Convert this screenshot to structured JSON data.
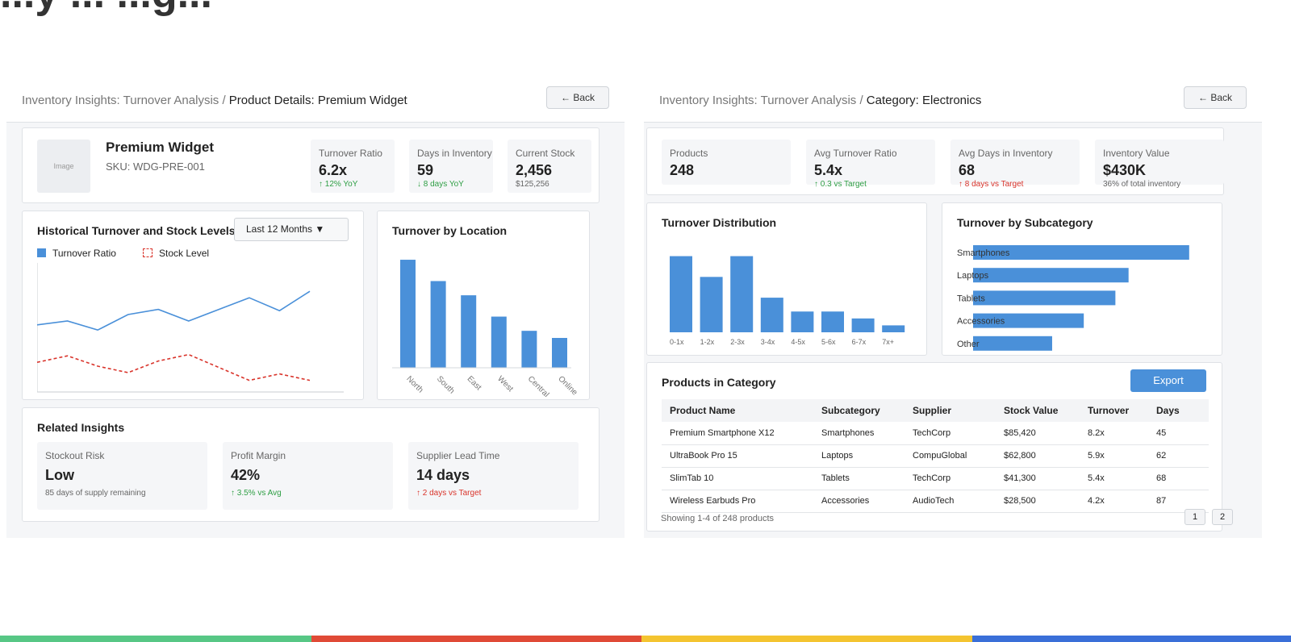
{
  "slide": {
    "title_fragment": "...y ... ...g..."
  },
  "left": {
    "breadcrumb_path": "Inventory Insights: Turnover Analysis / ",
    "breadcrumb_current": "Product Details: Premium Widget",
    "back_label": "← Back",
    "product": {
      "image_label": "Image",
      "name": "Premium Widget",
      "sku": "SKU: WDG-PRE-001"
    },
    "stats": [
      {
        "label": "Turnover Ratio",
        "value": "6.2x",
        "sub": "↑ 12% YoY",
        "tone": "up"
      },
      {
        "label": "Days in Inventory",
        "value": "59",
        "sub": "↓ 8 days YoY",
        "tone": "up"
      },
      {
        "label": "Current Stock",
        "value": "2,456",
        "sub": "$125,256",
        "tone": "grey"
      }
    ],
    "history": {
      "title": "Historical Turnover and Stock Levels",
      "period": "Last 12 Months ▼",
      "legend": [
        "Turnover Ratio",
        "Stock Level"
      ]
    },
    "location": {
      "title": "Turnover by Location"
    },
    "insights": {
      "title": "Related Insights",
      "items": [
        {
          "label": "Stockout Risk",
          "value": "Low",
          "sub": "85 days of supply remaining",
          "tone": "grey"
        },
        {
          "label": "Profit Margin",
          "value": "42%",
          "sub": "↑ 3.5% vs Avg",
          "tone": "up"
        },
        {
          "label": "Supplier Lead Time",
          "value": "14 days",
          "sub": "↑ 2 days vs Target",
          "tone": "bad"
        }
      ]
    }
  },
  "right": {
    "breadcrumb_path": "Inventory Insights: Turnover Analysis / ",
    "breadcrumb_current": "Category: Electronics",
    "back_label": "← Back",
    "stats": [
      {
        "label": "Products",
        "value": "248",
        "sub": "",
        "tone": "grey"
      },
      {
        "label": "Avg Turnover Ratio",
        "value": "5.4x",
        "sub": "↑ 0.3 vs Target",
        "tone": "up"
      },
      {
        "label": "Avg Days in Inventory",
        "value": "68",
        "sub": "↑ 8 days vs Target",
        "tone": "bad"
      },
      {
        "label": "Inventory Value",
        "value": "$430K",
        "sub": "36% of total inventory",
        "tone": "grey"
      }
    ],
    "distribution": {
      "title": "Turnover Distribution"
    },
    "subcategory": {
      "title": "Turnover by Subcategory"
    },
    "products": {
      "title": "Products in Category",
      "export_label": "Export",
      "columns": [
        "Product Name",
        "Subcategory",
        "Supplier",
        "Stock Value",
        "Turnover",
        "Days"
      ],
      "rows": [
        [
          "Premium Smartphone X12",
          "Smartphones",
          "TechCorp",
          "$85,420",
          "8.2x",
          "45"
        ],
        [
          "UltraBook Pro 15",
          "Laptops",
          "CompuGlobal",
          "$62,800",
          "5.9x",
          "62"
        ],
        [
          "SlimTab 10",
          "Tablets",
          "TechCorp",
          "$41,300",
          "5.4x",
          "68"
        ],
        [
          "Wireless Earbuds Pro",
          "Accessories",
          "AudioTech",
          "$28,500",
          "4.2x",
          "87"
        ]
      ],
      "footer": "Showing 1-4 of 248 products",
      "pages": [
        "1",
        "2"
      ]
    }
  },
  "colors": {
    "accent": "#4a90d9",
    "stock_line": "#d9342b",
    "up": "#2e9e44",
    "bad": "#d9342b",
    "bar_segments": [
      "#57c785",
      "#e04a36",
      "#f4c430",
      "#3a6fd8"
    ]
  },
  "chart_data": [
    {
      "type": "line",
      "title": "Historical Turnover and Stock Levels",
      "x": [
        1,
        2,
        3,
        4,
        5,
        6,
        7,
        8,
        9,
        10
      ],
      "series": [
        {
          "name": "Turnover Ratio",
          "values": [
            5.2,
            5.5,
            4.8,
            6.0,
            6.4,
            5.5,
            6.4,
            7.3,
            6.3,
            7.8
          ]
        },
        {
          "name": "Stock Level",
          "values": [
            2.3,
            2.8,
            2.0,
            1.5,
            2.4,
            2.9,
            1.9,
            0.9,
            1.4,
            0.9
          ]
        }
      ],
      "ylim": [
        0,
        10
      ],
      "xlabel": "",
      "ylabel": ""
    },
    {
      "type": "bar",
      "title": "Turnover by Location",
      "categories": [
        "North",
        "South",
        "East",
        "West",
        "Central",
        "Online"
      ],
      "values": [
        7.6,
        6.1,
        5.1,
        3.6,
        2.6,
        2.1
      ],
      "ylim": [
        0,
        8
      ]
    },
    {
      "type": "bar",
      "title": "Turnover Distribution",
      "categories": [
        "0-1x",
        "1-2x",
        "2-3x",
        "3-4x",
        "4-5x",
        "5-6x",
        "6-7x",
        "7x+"
      ],
      "values": [
        55,
        40,
        55,
        25,
        15,
        15,
        10,
        5
      ],
      "ylim": [
        0,
        60
      ]
    },
    {
      "type": "bar",
      "orientation": "horizontal",
      "title": "Turnover by Subcategory",
      "categories": [
        "Smartphones",
        "Laptops",
        "Tablets",
        "Accessories",
        "Other"
      ],
      "values": [
        8.2,
        5.9,
        5.4,
        4.2,
        3.0
      ],
      "xlim": [
        0,
        9.4
      ]
    }
  ]
}
